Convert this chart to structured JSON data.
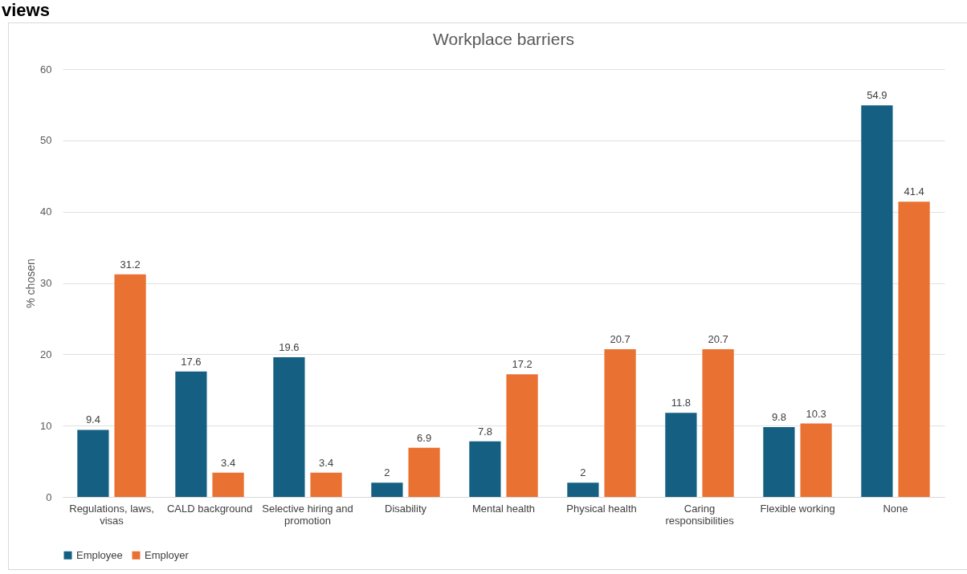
{
  "chart_data": {
    "type": "bar",
    "title": "Workplace barriers",
    "ylabel": "% chosen",
    "annotations": [
      "views"
    ],
    "categories": [
      "Regulations, laws, visas",
      "CALD background",
      "Selective hiring and promotion",
      "Disability",
      "Mental health",
      "Physical health",
      "Caring responsibilities",
      "Flexible working",
      "None"
    ],
    "series": [
      {
        "name": "Employee",
        "color": "#156082",
        "values": [
          9.4,
          17.6,
          19.6,
          2,
          7.8,
          2,
          11.8,
          9.8,
          54.9
        ]
      },
      {
        "name": "Employer",
        "color": "#e97132",
        "values": [
          31.2,
          3.4,
          3.4,
          6.9,
          17.2,
          20.7,
          20.7,
          10.3,
          41.4
        ]
      }
    ],
    "ylim": [
      0,
      60
    ],
    "yticks": [
      0,
      10,
      20,
      30,
      40,
      50,
      60
    ],
    "grid": "y",
    "legend": "bottom",
    "data_labels": true
  }
}
